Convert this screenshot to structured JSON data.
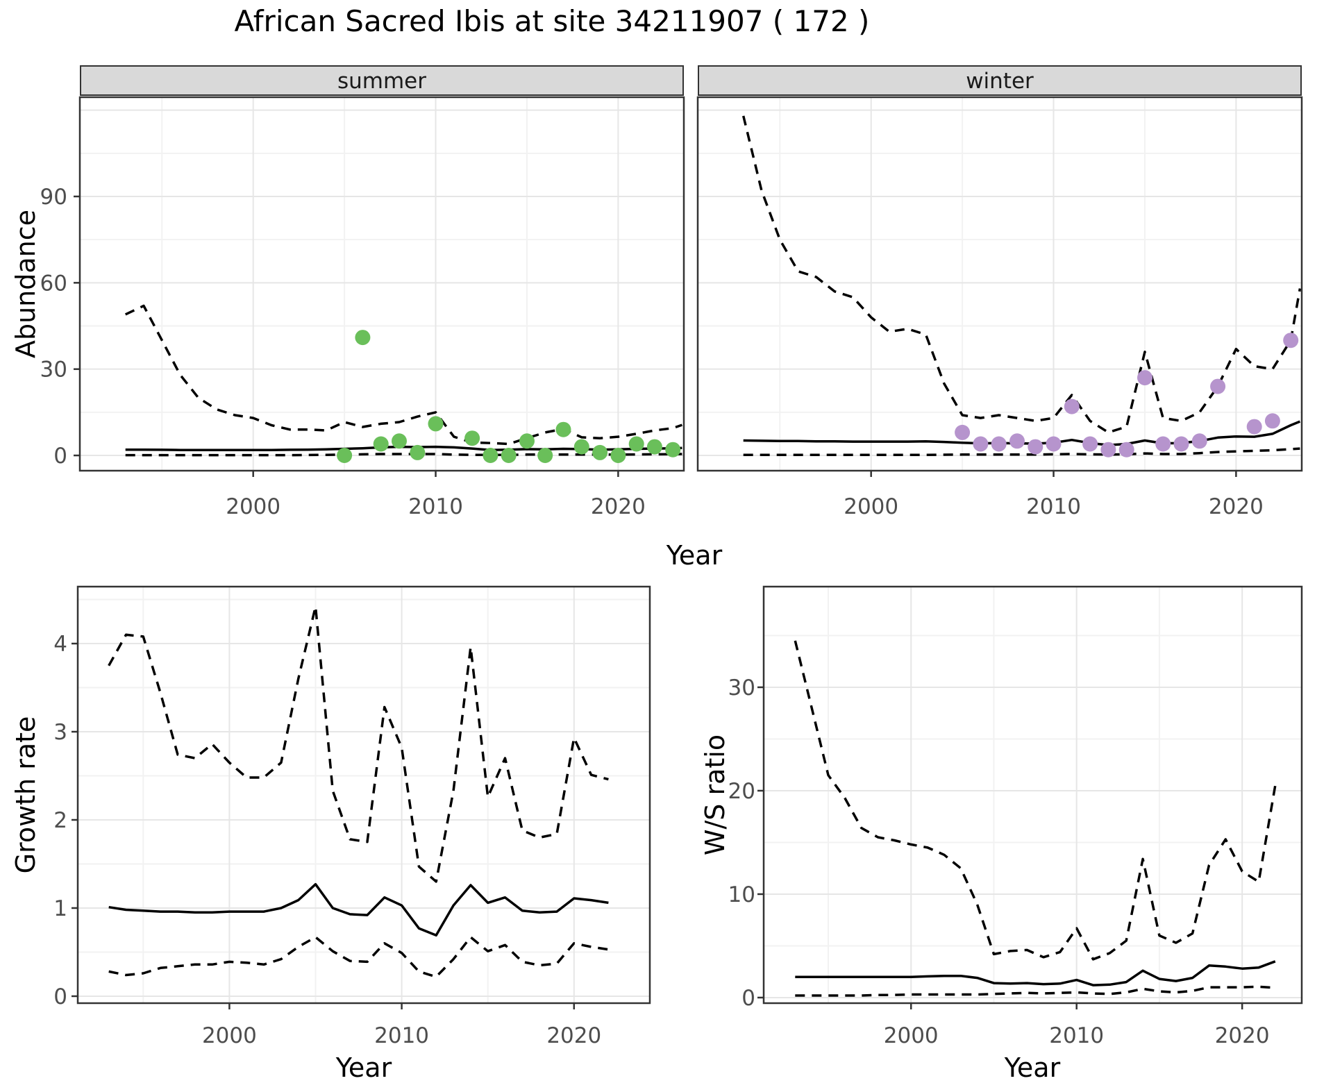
{
  "title": "African Sacred Ibis at site 34211907 ( 172 )",
  "facets": [
    "summer",
    "winter"
  ],
  "axes": {
    "year_label": "Year",
    "abundance_label": "Abundance",
    "growth_label": "Growth rate",
    "ws_label": "W/S ratio"
  },
  "colors": {
    "summer_point": "#6abf5a",
    "winter_point": "#b694cd",
    "fit_line": "#000000",
    "ci_line": "#000000",
    "strip_fill": "#d9d9d9",
    "panel_border": "#333333",
    "grid_major": "#e6e6e6",
    "grid_minor": "#f2f2f2",
    "tick_text": "#4d4d4d"
  },
  "chart_data": [
    {
      "type": "scatter",
      "facet": "summer",
      "xlabel": "Year",
      "ylabel": "Abundance",
      "x_ticks": [
        2000,
        2010,
        2020
      ],
      "y_ticks": [
        0,
        30,
        60,
        90
      ],
      "xlim": [
        1990.5,
        2023.6
      ],
      "ylim": [
        -5.3,
        124.5
      ],
      "points": {
        "x": [
          2005,
          2006,
          2007,
          2008,
          2009,
          2010,
          2012,
          2013,
          2014,
          2015,
          2016,
          2017,
          2018,
          2019,
          2020,
          2021,
          2022,
          2023
        ],
        "y": [
          0,
          41,
          4,
          5,
          1,
          11,
          6,
          0,
          0,
          5,
          0,
          9,
          3,
          1,
          0,
          4,
          3,
          2
        ]
      },
      "fit": {
        "x": [
          1993,
          1994,
          1995,
          1996,
          1997,
          1998,
          1999,
          2000,
          2001,
          2002,
          2003,
          2004,
          2005,
          2006,
          2007,
          2008,
          2009,
          2010,
          2011,
          2012,
          2013,
          2014,
          2015,
          2016,
          2017,
          2018,
          2019,
          2020,
          2021,
          2022,
          2023,
          2023.5
        ],
        "y": [
          2.0,
          2.0,
          1.95,
          1.9,
          1.9,
          1.9,
          1.9,
          1.9,
          1.9,
          1.95,
          2.0,
          2.1,
          2.3,
          2.5,
          2.8,
          3.0,
          2.9,
          3.0,
          2.8,
          2.4,
          1.9,
          2.0,
          2.2,
          2.1,
          2.3,
          2.2,
          2.0,
          2.1,
          2.3,
          2.4,
          2.5,
          2.6
        ]
      },
      "upper_ci": {
        "x": [
          1993,
          1994,
          1995,
          1996,
          1997,
          1998,
          1999,
          2000,
          2001,
          2002,
          2003,
          2004,
          2005,
          2006,
          2007,
          2008,
          2009,
          2010,
          2011,
          2012,
          2013,
          2014,
          2015,
          2016,
          2017,
          2018,
          2019,
          2020,
          2021,
          2022,
          2023,
          2023.5
        ],
        "y": [
          49,
          52,
          40,
          28,
          20,
          16,
          14,
          13,
          10.5,
          9,
          9,
          8.7,
          11.6,
          9.9,
          11,
          11.6,
          13.5,
          15,
          6.5,
          4.5,
          4.3,
          4,
          6,
          8,
          9.2,
          6.3,
          6,
          6.5,
          7.5,
          8.7,
          9.5,
          10.6
        ]
      },
      "lower_ci": {
        "x": [
          1993,
          1994,
          1995,
          1996,
          1997,
          1998,
          1999,
          2000,
          2001,
          2002,
          2003,
          2004,
          2005,
          2006,
          2007,
          2008,
          2009,
          2010,
          2011,
          2012,
          2013,
          2014,
          2015,
          2016,
          2017,
          2018,
          2019,
          2020,
          2021,
          2022,
          2023,
          2023.5
        ],
        "y": [
          0.1,
          0.1,
          0.1,
          0.1,
          0.1,
          0.1,
          0.1,
          0.1,
          0.1,
          0.1,
          0.15,
          0.2,
          0.3,
          0.4,
          0.5,
          0.5,
          0.5,
          0.5,
          0.3,
          0.2,
          0.2,
          0.2,
          0.3,
          0.3,
          0.3,
          0.3,
          0.3,
          0.3,
          0.35,
          0.4,
          0.45,
          0.5
        ]
      }
    },
    {
      "type": "scatter",
      "facet": "winter",
      "xlabel": "Year",
      "ylabel": "Abundance",
      "x_ticks": [
        2000,
        2010,
        2020
      ],
      "y_ticks": [
        0,
        30,
        60,
        90
      ],
      "xlim": [
        1990.5,
        2023.6
      ],
      "ylim": [
        -5.3,
        124.5
      ],
      "points": {
        "x": [
          2005,
          2006,
          2007,
          2008,
          2009,
          2010,
          2011,
          2012,
          2013,
          2014,
          2015,
          2016,
          2017,
          2018,
          2019,
          2021,
          2022,
          2023
        ],
        "y": [
          8,
          4,
          4,
          5,
          3,
          4,
          17,
          4,
          2,
          2,
          27,
          4,
          4,
          5,
          24,
          10,
          12,
          40
        ]
      },
      "fit": {
        "x": [
          1993,
          1994,
          1995,
          1996,
          1997,
          1998,
          1999,
          2000,
          2001,
          2002,
          2003,
          2004,
          2005,
          2006,
          2007,
          2008,
          2009,
          2010,
          2011,
          2012,
          2013,
          2014,
          2015,
          2016,
          2017,
          2018,
          2019,
          2020,
          2021,
          2022,
          2023,
          2023.5
        ],
        "y": [
          5.2,
          5.1,
          5.0,
          5.0,
          4.9,
          4.9,
          4.8,
          4.8,
          4.8,
          4.8,
          4.9,
          4.7,
          4.4,
          4.2,
          4.3,
          4.2,
          4.1,
          4.4,
          5.4,
          4.3,
          3.6,
          4.0,
          5.2,
          4.2,
          4.3,
          5.0,
          6.2,
          6.6,
          6.5,
          7.5,
          10.5,
          11.8
        ]
      },
      "upper_ci": {
        "x": [
          1993,
          1994,
          1995,
          1996,
          1997,
          1998,
          1999,
          2000,
          2001,
          2002,
          2003,
          2004,
          2005,
          2006,
          2007,
          2008,
          2009,
          2010,
          2011,
          2012,
          2013,
          2014,
          2015,
          2016,
          2017,
          2018,
          2019,
          2020,
          2021,
          2022,
          2023,
          2023.5
        ],
        "y": [
          118,
          92,
          75,
          64,
          62,
          57,
          55,
          48,
          43,
          44,
          42,
          25,
          14,
          13,
          14,
          13,
          12,
          13,
          21,
          12,
          8,
          10,
          36,
          13,
          12,
          15,
          24,
          37,
          31,
          30,
          40,
          58
        ]
      },
      "lower_ci": {
        "x": [
          1993,
          1994,
          1995,
          1996,
          1997,
          1998,
          1999,
          2000,
          2001,
          2002,
          2003,
          2004,
          2005,
          2006,
          2007,
          2008,
          2009,
          2010,
          2011,
          2012,
          2013,
          2014,
          2015,
          2016,
          2017,
          2018,
          2019,
          2020,
          2021,
          2022,
          2023,
          2023.5
        ],
        "y": [
          0.2,
          0.2,
          0.2,
          0.2,
          0.2,
          0.2,
          0.2,
          0.2,
          0.2,
          0.2,
          0.2,
          0.25,
          0.3,
          0.3,
          0.3,
          0.3,
          0.3,
          0.4,
          0.5,
          0.4,
          0.3,
          0.4,
          0.7,
          0.5,
          0.5,
          0.8,
          1.2,
          1.4,
          1.6,
          1.8,
          2.2,
          2.4
        ]
      }
    },
    {
      "type": "line",
      "facet": null,
      "xlabel": "Year",
      "ylabel": "Growth rate",
      "x_ticks": [
        2000,
        2010,
        2020
      ],
      "y_ticks": [
        0,
        1,
        2,
        3,
        4
      ],
      "xlim": [
        1991.2,
        2024.4
      ],
      "ylim": [
        -0.079,
        4.646
      ],
      "fit": {
        "x": [
          1993,
          1994,
          1995,
          1996,
          1997,
          1998,
          1999,
          2000,
          2001,
          2002,
          2003,
          2004,
          2005,
          2006,
          2007,
          2008,
          2009,
          2010,
          2011,
          2012,
          2013,
          2014,
          2015,
          2016,
          2017,
          2018,
          2019,
          2020,
          2021,
          2022
        ],
        "y": [
          1.01,
          0.98,
          0.97,
          0.96,
          0.96,
          0.95,
          0.95,
          0.96,
          0.96,
          0.96,
          1.0,
          1.09,
          1.27,
          1.0,
          0.93,
          0.92,
          1.12,
          1.03,
          0.77,
          0.69,
          1.03,
          1.26,
          1.06,
          1.12,
          0.97,
          0.95,
          0.96,
          1.11,
          1.09,
          1.06
        ]
      },
      "upper_ci": {
        "x": [
          1993,
          1994,
          1995,
          1996,
          1997,
          1998,
          1999,
          2000,
          2001,
          2002,
          2003,
          2004,
          2005,
          2006,
          2007,
          2008,
          2009,
          2010,
          2011,
          2012,
          2013,
          2014,
          2015,
          2016,
          2017,
          2018,
          2019,
          2020,
          2021,
          2022
        ],
        "y": [
          3.75,
          4.1,
          4.08,
          3.44,
          2.74,
          2.7,
          2.86,
          2.65,
          2.48,
          2.48,
          2.65,
          3.6,
          4.42,
          2.33,
          1.78,
          1.75,
          3.28,
          2.82,
          1.47,
          1.3,
          2.33,
          3.96,
          2.26,
          2.7,
          1.88,
          1.8,
          1.84,
          2.93,
          2.51,
          2.46
        ]
      },
      "lower_ci": {
        "x": [
          1993,
          1994,
          1995,
          1996,
          1997,
          1998,
          1999,
          2000,
          2001,
          2002,
          2003,
          2004,
          2005,
          2006,
          2007,
          2008,
          2009,
          2010,
          2011,
          2012,
          2013,
          2014,
          2015,
          2016,
          2017,
          2018,
          2019,
          2020,
          2021,
          2022
        ],
        "y": [
          0.28,
          0.24,
          0.26,
          0.32,
          0.34,
          0.36,
          0.36,
          0.39,
          0.38,
          0.36,
          0.42,
          0.56,
          0.67,
          0.51,
          0.4,
          0.39,
          0.6,
          0.49,
          0.28,
          0.22,
          0.42,
          0.67,
          0.51,
          0.58,
          0.39,
          0.35,
          0.37,
          0.6,
          0.56,
          0.53
        ]
      }
    },
    {
      "type": "line",
      "facet": null,
      "xlabel": "Year",
      "ylabel": "W/S ratio",
      "x_ticks": [
        2000,
        2010,
        2020
      ],
      "y_ticks": [
        0,
        10,
        20,
        30
      ],
      "xlim": [
        1991.1,
        2023.6
      ],
      "ylim": [
        -0.54,
        39.73
      ],
      "fit": {
        "x": [
          1993,
          1994,
          1995,
          1996,
          1997,
          1998,
          1999,
          2000,
          2001,
          2002,
          2003,
          2004,
          2005,
          2006,
          2007,
          2008,
          2009,
          2010,
          2011,
          2012,
          2013,
          2014,
          2015,
          2016,
          2017,
          2018,
          2019,
          2020,
          2021,
          2022
        ],
        "y": [
          2.0,
          2.0,
          2.0,
          2.0,
          2.0,
          2.0,
          2.0,
          2.0,
          2.05,
          2.1,
          2.1,
          1.9,
          1.4,
          1.35,
          1.4,
          1.3,
          1.35,
          1.7,
          1.2,
          1.25,
          1.5,
          2.6,
          1.8,
          1.6,
          1.9,
          3.1,
          3.0,
          2.8,
          2.9,
          3.5
        ]
      },
      "upper_ci": {
        "x": [
          1993,
          1994,
          1995,
          1996,
          1997,
          1998,
          1999,
          2000,
          2001,
          2002,
          2003,
          2004,
          2005,
          2006,
          2007,
          2008,
          2009,
          2010,
          2011,
          2012,
          2013,
          2014,
          2015,
          2016,
          2017,
          2018,
          2019,
          2020,
          2021,
          2022
        ],
        "y": [
          34.5,
          28,
          21.5,
          19.3,
          16.4,
          15.5,
          15.2,
          14.8,
          14.5,
          13.8,
          12.5,
          9.0,
          4.2,
          4.5,
          4.6,
          3.9,
          4.4,
          6.7,
          3.7,
          4.3,
          5.5,
          13.4,
          6.0,
          5.3,
          6.2,
          12.8,
          15.3,
          12.2,
          11.2,
          20.5
        ]
      },
      "lower_ci": {
        "x": [
          1993,
          1994,
          1995,
          1996,
          1997,
          1998,
          1999,
          2000,
          2001,
          2002,
          2003,
          2004,
          2005,
          2006,
          2007,
          2008,
          2009,
          2010,
          2011,
          2012,
          2013,
          2014,
          2015,
          2016,
          2017,
          2018,
          2019,
          2020,
          2021,
          2022
        ],
        "y": [
          0.2,
          0.2,
          0.2,
          0.2,
          0.2,
          0.25,
          0.25,
          0.3,
          0.3,
          0.3,
          0.3,
          0.3,
          0.35,
          0.4,
          0.45,
          0.4,
          0.45,
          0.5,
          0.4,
          0.35,
          0.5,
          0.85,
          0.6,
          0.5,
          0.65,
          1.0,
          1.0,
          1.0,
          1.05,
          0.95
        ]
      }
    }
  ]
}
